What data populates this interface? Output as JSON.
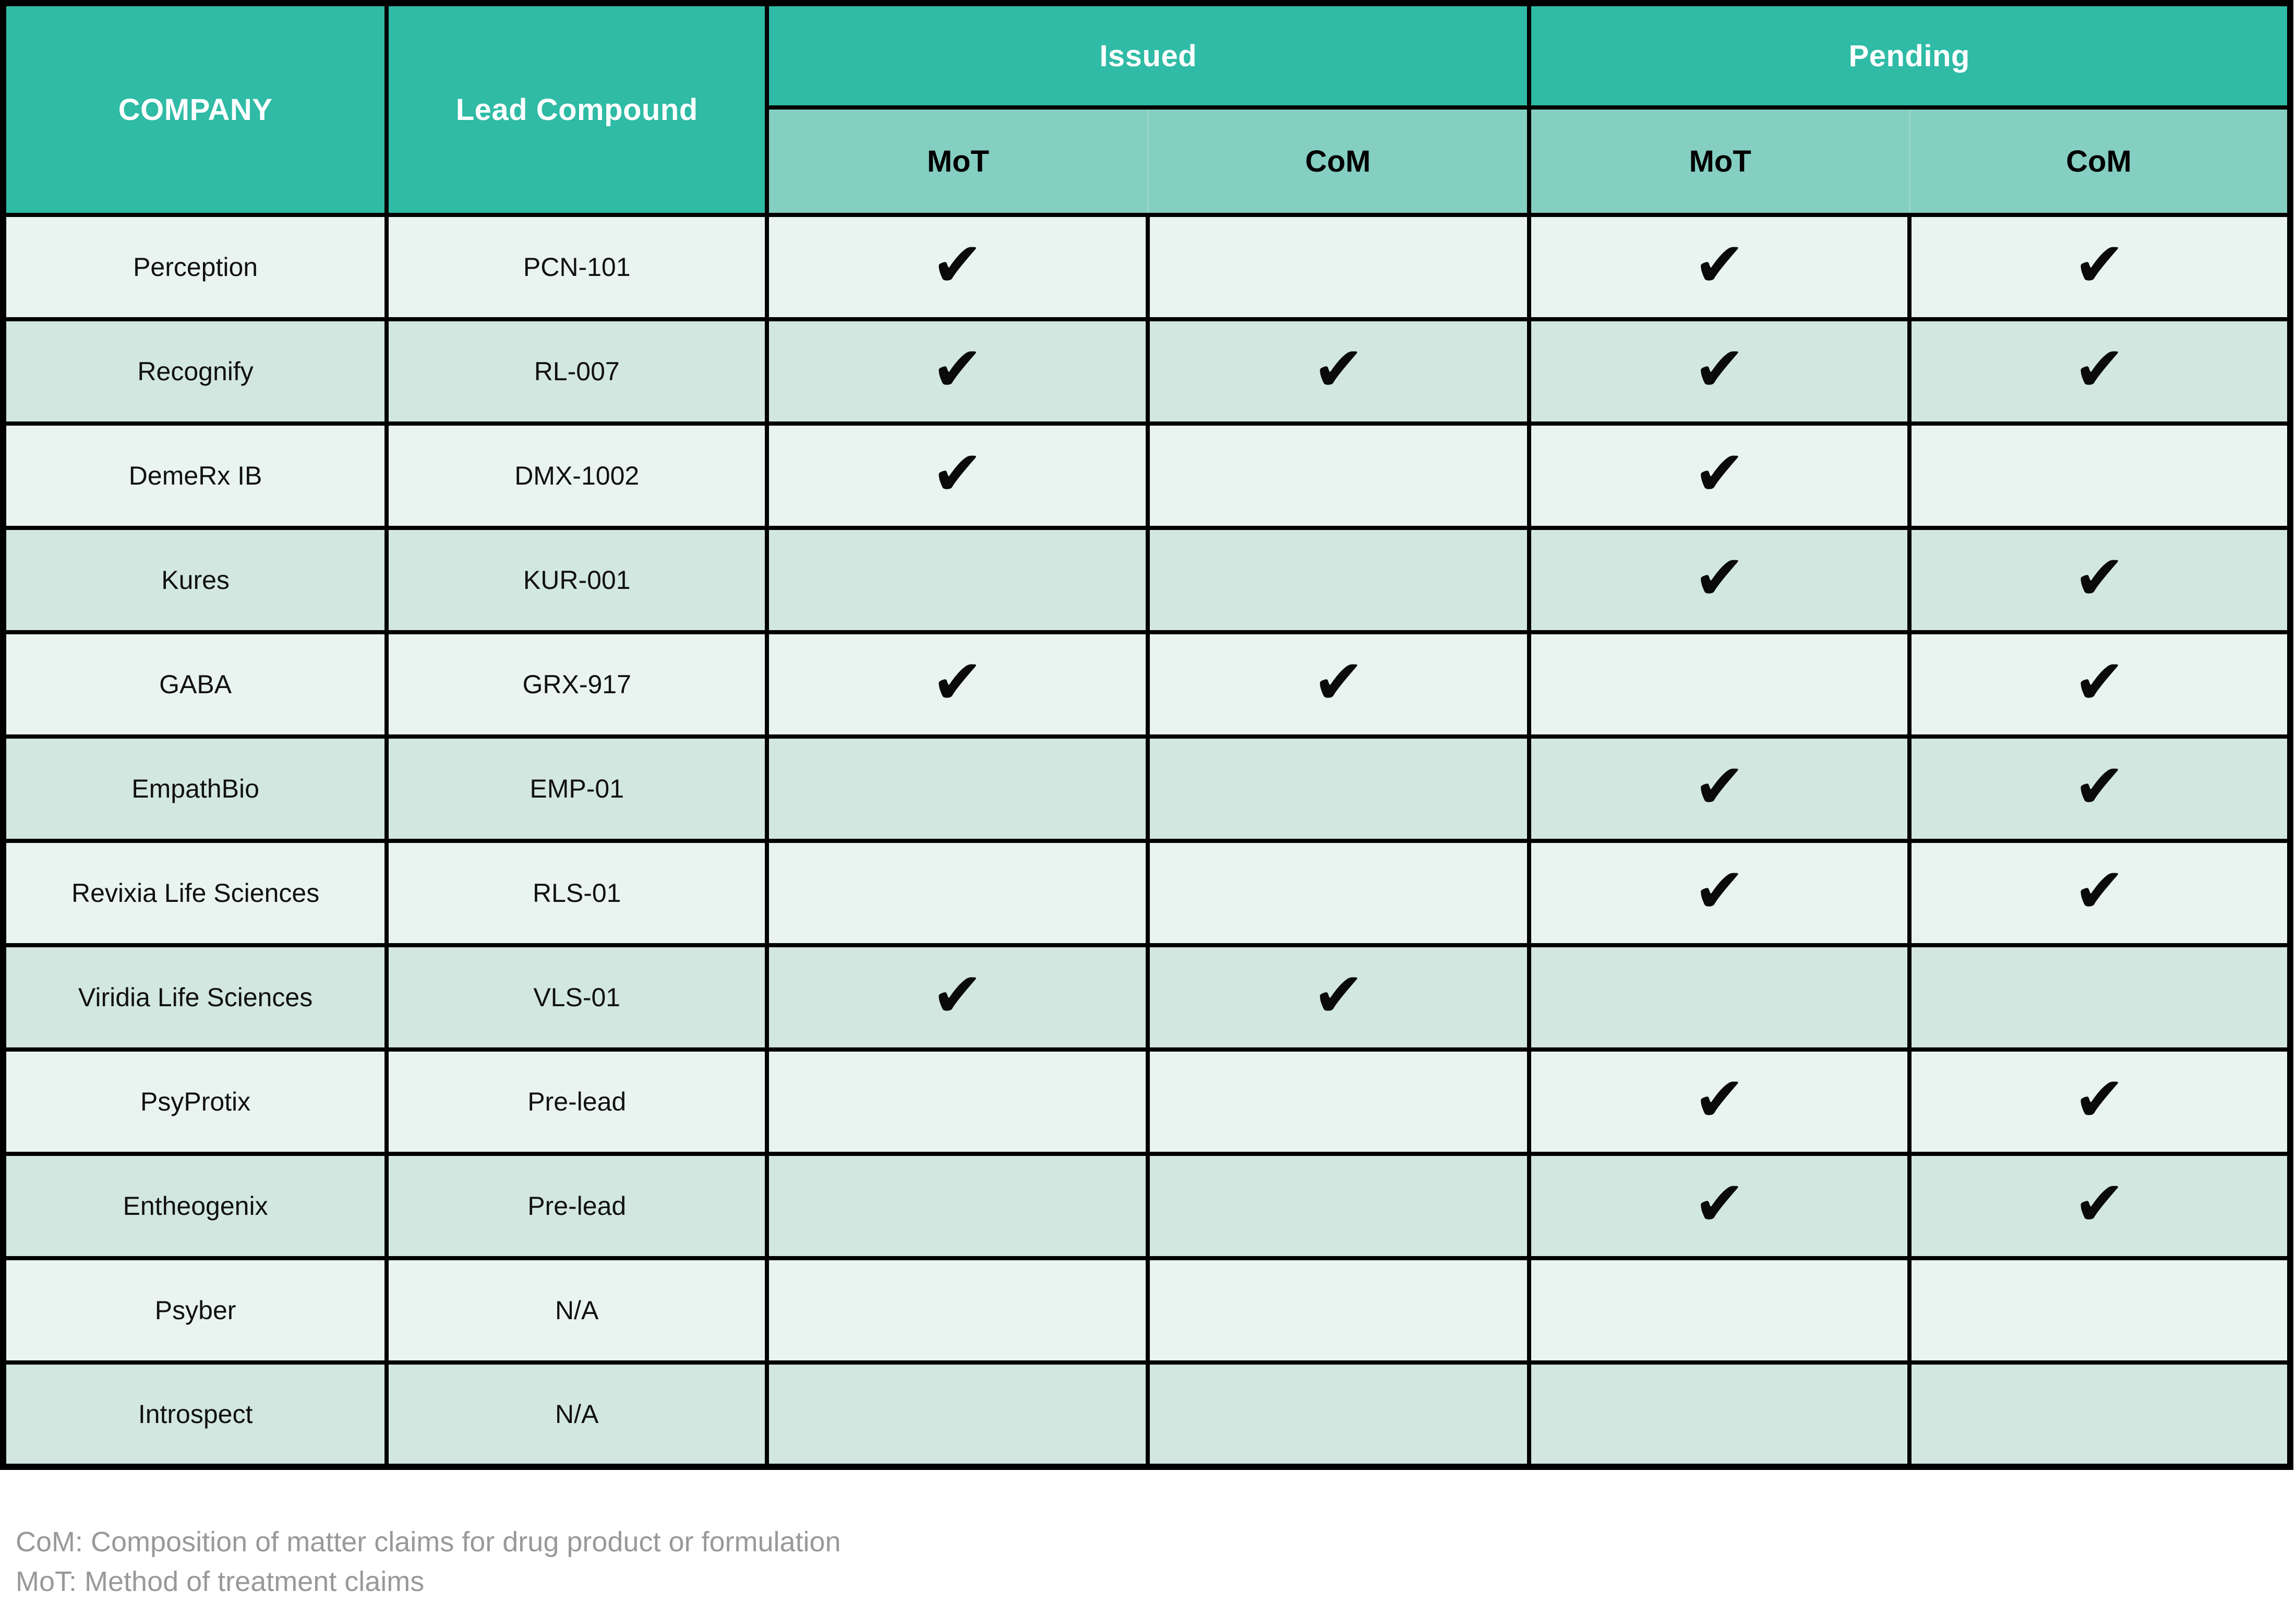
{
  "table": {
    "headers": {
      "company": "COMPANY",
      "lead_compound": "Lead Compound",
      "issued_group": "Issued",
      "pending_group": "Pending",
      "issued_mot": "MoT",
      "issued_com": "CoM",
      "pending_mot": "MoT",
      "pending_com": "CoM"
    },
    "check_glyph": "✔",
    "rows": [
      {
        "company": "Perception",
        "compound": "PCN-101",
        "issued_mot": true,
        "issued_com": false,
        "pending_mot": true,
        "pending_com": true
      },
      {
        "company": "Recognify",
        "compound": "RL-007",
        "issued_mot": true,
        "issued_com": true,
        "pending_mot": true,
        "pending_com": true
      },
      {
        "company": "DemeRx IB",
        "compound": "DMX-1002",
        "issued_mot": true,
        "issued_com": false,
        "pending_mot": true,
        "pending_com": false
      },
      {
        "company": "Kures",
        "compound": "KUR-001",
        "issued_mot": false,
        "issued_com": false,
        "pending_mot": true,
        "pending_com": true
      },
      {
        "company": "GABA",
        "compound": "GRX-917",
        "issued_mot": true,
        "issued_com": true,
        "pending_mot": false,
        "pending_com": true
      },
      {
        "company": "EmpathBio",
        "compound": "EMP-01",
        "issued_mot": false,
        "issued_com": false,
        "pending_mot": true,
        "pending_com": true
      },
      {
        "company": "Revixia Life Sciences",
        "compound": "RLS-01",
        "issued_mot": false,
        "issued_com": false,
        "pending_mot": true,
        "pending_com": true
      },
      {
        "company": "Viridia Life Sciences",
        "compound": "VLS-01",
        "issued_mot": true,
        "issued_com": true,
        "pending_mot": false,
        "pending_com": false
      },
      {
        "company": "PsyProtix",
        "compound": "Pre-lead",
        "issued_mot": false,
        "issued_com": false,
        "pending_mot": true,
        "pending_com": true
      },
      {
        "company": "Entheogenix",
        "compound": "Pre-lead",
        "issued_mot": false,
        "issued_com": false,
        "pending_mot": true,
        "pending_com": true
      },
      {
        "company": "Psyber",
        "compound": "N/A",
        "issued_mot": false,
        "issued_com": false,
        "pending_mot": false,
        "pending_com": false
      },
      {
        "company": "Introspect",
        "compound": "N/A",
        "issued_mot": false,
        "issued_com": false,
        "pending_mot": false,
        "pending_com": false
      }
    ]
  },
  "footnotes": {
    "com": "CoM: Composition of matter claims for drug product or formulation",
    "mot": "MoT: Method of treatment claims"
  },
  "colors": {
    "header_bg": "#2FBBA5",
    "subheader_bg": "#85CEC2",
    "row_light": "#E9F4F1",
    "row_dark": "#D3E7E1",
    "border": "#000000",
    "header_text": "#FFFFFF",
    "cell_text": "#111111",
    "footnote_text": "#999999"
  }
}
